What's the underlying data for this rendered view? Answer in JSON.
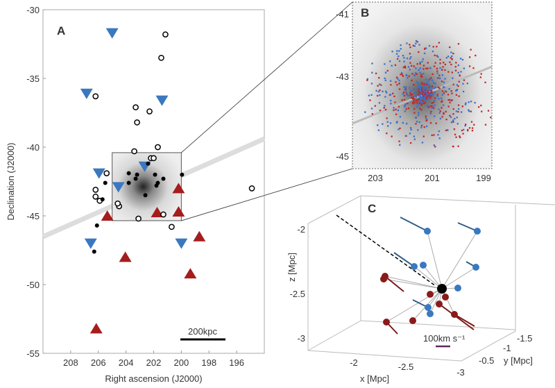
{
  "chart_data": [
    {
      "panel": "A",
      "type": "scatter",
      "xlabel": "Right ascension (J2000)",
      "ylabel": "Declination (J2000)",
      "xlim": [
        210,
        194
      ],
      "ylim": [
        -55,
        -30
      ],
      "xticks": [
        "208",
        "206",
        "204",
        "202",
        "200",
        "198",
        "196"
      ],
      "yticks": [
        "-30",
        "-35",
        "-40",
        "-45",
        "-50",
        "-55"
      ],
      "scale_bar": "200kpc",
      "colors": {
        "blue": "#3a78c0",
        "red": "#a51d1d"
      },
      "series": [
        {
          "marker": "blue-down-triangle",
          "points": [
            [
              205,
              -31.7
            ],
            [
              206.85,
              -36.1
            ],
            [
              201.4,
              -36.6
            ],
            [
              205.95,
              -41.9
            ],
            [
              202.65,
              -41.4
            ],
            [
              204.55,
              -42.9
            ],
            [
              206.55,
              -47.0
            ],
            [
              200,
              -47.0
            ]
          ]
        },
        {
          "marker": "red-up-triangle",
          "points": [
            [
              205.35,
              -45.0
            ],
            [
              204.05,
              -48.0
            ],
            [
              201.75,
              -44.75
            ],
            [
              200.2,
              -44.7
            ],
            [
              200.2,
              -43.0
            ],
            [
              198.7,
              -46.5
            ],
            [
              199.35,
              -49.2
            ],
            [
              206.15,
              -53.2
            ]
          ]
        },
        {
          "marker": "open-circle",
          "points": [
            [
              201.15,
              -31.8
            ],
            [
              201.45,
              -33.5
            ],
            [
              206.2,
              -36.3
            ],
            [
              203.3,
              -37.1
            ],
            [
              202.3,
              -37.4
            ],
            [
              203.2,
              -38.2
            ],
            [
              203.4,
              -40.3
            ],
            [
              201.7,
              -40.0
            ],
            [
              202.2,
              -40.8
            ],
            [
              202.0,
              -40.8
            ],
            [
              205.4,
              -41.9
            ],
            [
              206.2,
              -43.1
            ],
            [
              206.2,
              -43.6
            ],
            [
              204.5,
              -44.3
            ],
            [
              203.1,
              -45.2
            ],
            [
              201.3,
              -44.9
            ],
            [
              200.7,
              -45.8
            ],
            [
              205.9,
              -43.9
            ],
            [
              194.9,
              -43.0
            ],
            [
              204.6,
              -44.1
            ]
          ]
        },
        {
          "marker": "filled-circle",
          "points": [
            [
              203.8,
              -41.9
            ],
            [
              203.2,
              -42.0
            ],
            [
              203.3,
              -42.3
            ],
            [
              201.9,
              -42.0
            ],
            [
              201.3,
              -42.3
            ],
            [
              199.95,
              -42.0
            ],
            [
              205.5,
              -42.6
            ],
            [
              203.8,
              -42.6
            ],
            [
              201.7,
              -42.6
            ],
            [
              201.8,
              -42.8
            ],
            [
              202.4,
              -41.2
            ],
            [
              205.7,
              -43.8
            ],
            [
              206.1,
              -45.7
            ],
            [
              206.3,
              -47.6
            ],
            [
              202.6,
              -43.5
            ]
          ]
        }
      ]
    },
    {
      "panel": "B",
      "type": "image",
      "xticks": [
        "203",
        "201",
        "199"
      ],
      "yticks": [
        "-41",
        "-43",
        "-45"
      ]
    },
    {
      "panel": "C",
      "type": "scatter3d",
      "xlabel": "x [Mpc]",
      "ylabel": "y [Mpc]",
      "zlabel": "z [Mpc]",
      "xticks": [
        "-2",
        "-2.5",
        "-3"
      ],
      "yticks": [
        "-0.5",
        "-1",
        "-1.5"
      ],
      "zticks": [
        "-2",
        "-2.5",
        "-3"
      ],
      "scale_bar": "100km s⁻¹"
    }
  ]
}
